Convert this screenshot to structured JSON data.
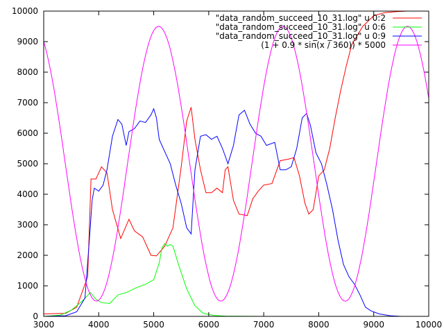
{
  "chart_data": {
    "type": "line",
    "title": "",
    "xlabel": "",
    "ylabel": "",
    "xlim": [
      3000,
      10000
    ],
    "ylim": [
      0,
      10000
    ],
    "xticks": [
      3000,
      4000,
      5000,
      6000,
      7000,
      8000,
      9000,
      10000
    ],
    "yticks": [
      0,
      1000,
      2000,
      3000,
      4000,
      5000,
      6000,
      7000,
      8000,
      9000,
      10000
    ],
    "xtick_labels": [
      "3000",
      "4000",
      "5000",
      "6000",
      "7000",
      "8000",
      "9000",
      "10000"
    ],
    "ytick_labels": [
      "0",
      "1000",
      "2000",
      "3000",
      "4000",
      "5000",
      "6000",
      "7000",
      "8000",
      "9000",
      "10000"
    ],
    "grid": false,
    "legend_position": "top-right",
    "series": [
      {
        "name": "\"data_random_succeed_10_31.log\" u 0:2",
        "color": "#ff0000",
        "x": [
          3000,
          3400,
          3600,
          3800,
          3860,
          3950,
          4050,
          4150,
          4250,
          4400,
          4550,
          4650,
          4800,
          4950,
          5050,
          5200,
          5350,
          5500,
          5600,
          5680,
          5750,
          5850,
          5950,
          6050,
          6150,
          6250,
          6300,
          6350,
          6450,
          6550,
          6700,
          6800,
          6900,
          7000,
          7150,
          7300,
          7450,
          7550,
          7650,
          7750,
          7820,
          7900,
          8000,
          8100,
          8200,
          8300,
          8400,
          8500,
          8600,
          8800,
          9000,
          9200,
          9400,
          9600,
          9800,
          10000
        ],
        "values": [
          80,
          100,
          300,
          1300,
          4500,
          4500,
          4900,
          4700,
          3500,
          2550,
          3180,
          2800,
          2600,
          2000,
          1980,
          2300,
          2900,
          4900,
          6400,
          6850,
          5800,
          4800,
          4050,
          4050,
          4200,
          4050,
          4800,
          4900,
          3800,
          3350,
          3300,
          3850,
          4100,
          4300,
          4350,
          5100,
          5150,
          5200,
          4600,
          3700,
          3350,
          3500,
          4600,
          4800,
          5500,
          6500,
          7400,
          8200,
          8900,
          9500,
          9850,
          9950,
          9980,
          10000,
          10000,
          10000
        ]
      },
      {
        "name": "\"data_random_succeed_10_31.log\" u 0:6",
        "color": "#00ff00",
        "x": [
          3000,
          3300,
          3500,
          3700,
          3850,
          3950,
          4050,
          4200,
          4350,
          4500,
          4700,
          4850,
          5000,
          5100,
          5150,
          5200,
          5250,
          5300,
          5350,
          5450,
          5600,
          5750,
          5900,
          6100,
          6300,
          6500,
          7000,
          8000,
          9000,
          10000
        ],
        "values": [
          0,
          40,
          200,
          500,
          780,
          560,
          450,
          420,
          700,
          780,
          950,
          1050,
          1200,
          1750,
          2250,
          2380,
          2300,
          2350,
          2300,
          1700,
          900,
          350,
          100,
          30,
          10,
          5,
          0,
          0,
          0,
          0
        ]
      },
      {
        "name": "\"data_random_succeed_10_31.log\" u 0:9",
        "color": "#0000ff",
        "x": [
          3000,
          3400,
          3600,
          3750,
          3830,
          3880,
          3920,
          4000,
          4080,
          4150,
          4250,
          4350,
          4420,
          4500,
          4550,
          4650,
          4750,
          4850,
          4950,
          5000,
          5050,
          5100,
          5200,
          5300,
          5400,
          5500,
          5600,
          5680,
          5750,
          5850,
          5950,
          6050,
          6150,
          6250,
          6350,
          6450,
          6550,
          6650,
          6750,
          6850,
          6950,
          7050,
          7200,
          7300,
          7400,
          7500,
          7600,
          7700,
          7780,
          7850,
          7950,
          8050,
          8150,
          8250,
          8350,
          8450,
          8550,
          8650,
          8750,
          8850,
          8950,
          9100,
          9300,
          9500,
          9700,
          10000
        ],
        "values": [
          0,
          20,
          150,
          600,
          2500,
          3800,
          4200,
          4100,
          4300,
          4800,
          5900,
          6450,
          6300,
          5600,
          6050,
          6150,
          6400,
          6350,
          6600,
          6800,
          6500,
          5800,
          5400,
          5000,
          4300,
          3700,
          2900,
          2700,
          4800,
          5900,
          5950,
          5800,
          5900,
          5500,
          5000,
          5600,
          6600,
          6750,
          6300,
          6000,
          5900,
          5600,
          5700,
          4800,
          4800,
          4900,
          5500,
          6500,
          6650,
          6250,
          5350,
          5000,
          4300,
          3500,
          2500,
          1700,
          1300,
          1050,
          700,
          300,
          180,
          80,
          20,
          0,
          0,
          0
        ]
      },
      {
        "name": "(1 + 0.9 * sin(x / 360)) * 5000",
        "color": "#ff00ff",
        "formula": "(1 + 0.9 * sin(x / 360)) * 5000",
        "x_range": [
          3000,
          10000
        ]
      }
    ]
  }
}
